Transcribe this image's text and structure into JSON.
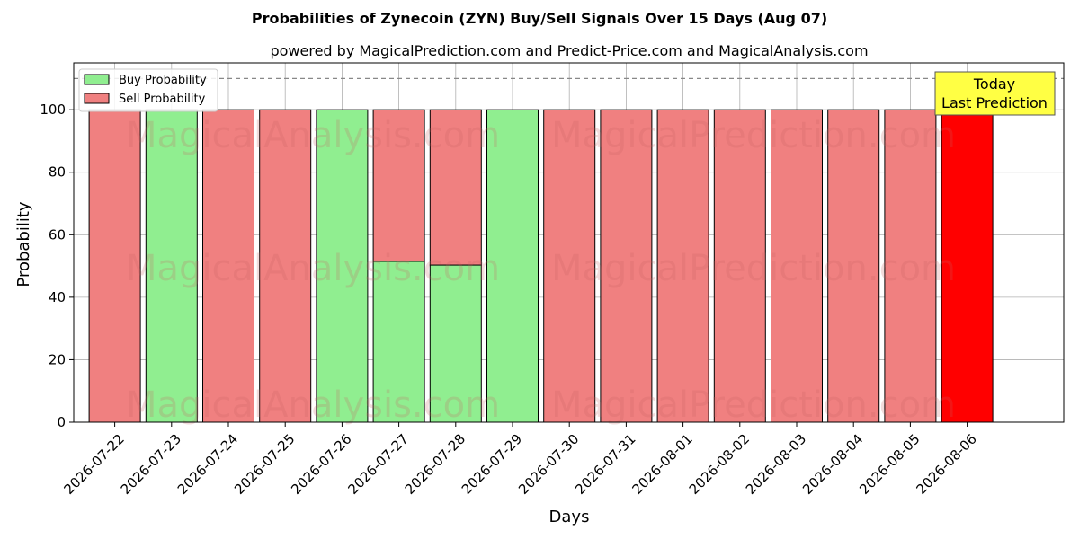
{
  "chart_data": {
    "type": "bar",
    "stacked": true,
    "title": "Probabilities of Zynecoin (ZYN) Buy/Sell Signals Over 15 Days (Aug 07)",
    "subtitle": "powered by MagicalPrediction.com and Predict-Price.com and MagicalAnalysis.com",
    "xlabel": "Days",
    "ylabel": "Probability",
    "ylim": [
      0,
      115
    ],
    "yticks": [
      0,
      20,
      40,
      60,
      80,
      100
    ],
    "grid": true,
    "reference_line": 110,
    "legend_placement": "top-left",
    "categories": [
      "2026-07-22",
      "2026-07-23",
      "2026-07-24",
      "2026-07-25",
      "2026-07-26",
      "2026-07-27",
      "2026-07-28",
      "2026-07-29",
      "2026-07-30",
      "2026-07-31",
      "2026-08-01",
      "2026-08-02",
      "2026-08-03",
      "2026-08-04",
      "2026-08-05",
      "2026-08-06"
    ],
    "series": [
      {
        "name": "Buy Probability",
        "color": "#90ee90",
        "values": [
          0,
          100,
          0,
          0,
          100,
          51.5,
          50.3,
          100,
          0,
          0,
          0,
          0,
          0,
          0,
          0,
          0
        ]
      },
      {
        "name": "Sell Probability",
        "color": "#f08080",
        "values": [
          100,
          0,
          100,
          100,
          0,
          48.5,
          49.7,
          0,
          100,
          100,
          100,
          100,
          100,
          100,
          100,
          100
        ]
      }
    ],
    "highlight": {
      "index": 15,
      "color": "#ff0000"
    },
    "annotation": {
      "lines": [
        "Today",
        "Last Prediction"
      ],
      "color": "#ffff44"
    },
    "watermarks": [
      "MagicalAnalysis.com",
      "MagicalPrediction.com"
    ]
  }
}
